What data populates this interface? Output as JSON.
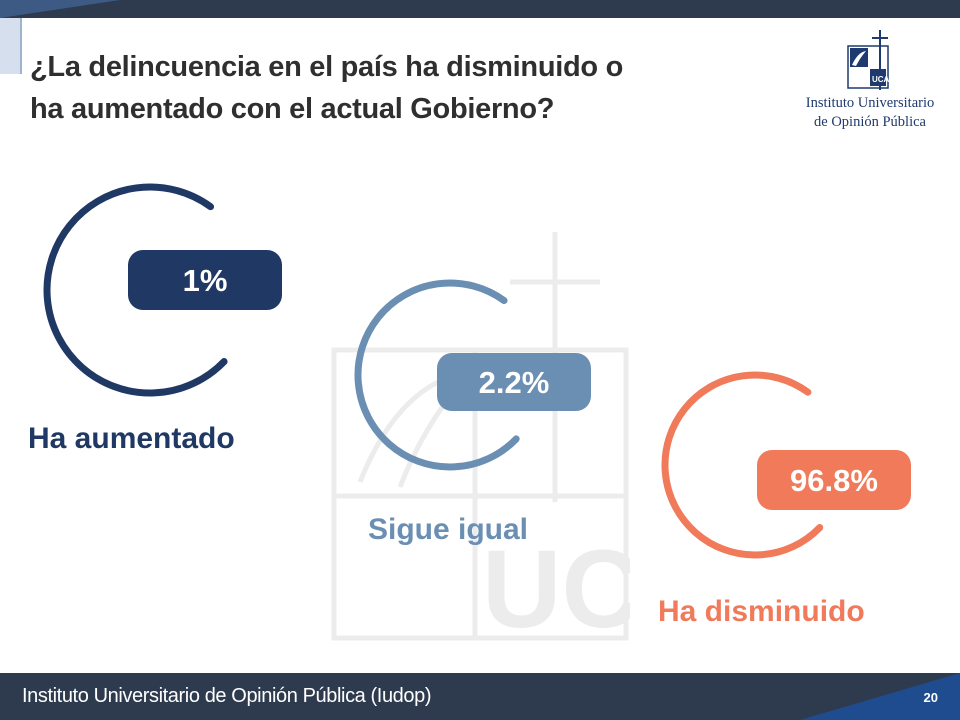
{
  "header": {
    "title_line1": "¿La delincuencia en el país ha disminuido o",
    "title_line2": "ha aumentado con el actual Gobierno?"
  },
  "logo": {
    "line1": "Instituto Universitario",
    "line2": "de Opinión Pública"
  },
  "footer": {
    "text": "Instituto Universitario de Opinión Pública (Iudop)",
    "page_number": "20"
  },
  "colors": {
    "aumentado": "#1f3864",
    "sigue_igual": "#6b8fb3",
    "disminuido": "#f07a5a",
    "bar": "#2e3b4e",
    "brand_blue": "#1f4c8e"
  },
  "chart_data": {
    "type": "bar",
    "title": "¿La delincuencia en el país ha disminuido o ha aumentado con el actual Gobierno?",
    "categories": [
      "Ha aumentado",
      "Sigue igual",
      "Ha disminuido"
    ],
    "values": [
      1,
      2.2,
      96.8
    ],
    "value_labels": [
      "1%",
      "2.2%",
      "96.8%"
    ],
    "unit": "%"
  }
}
